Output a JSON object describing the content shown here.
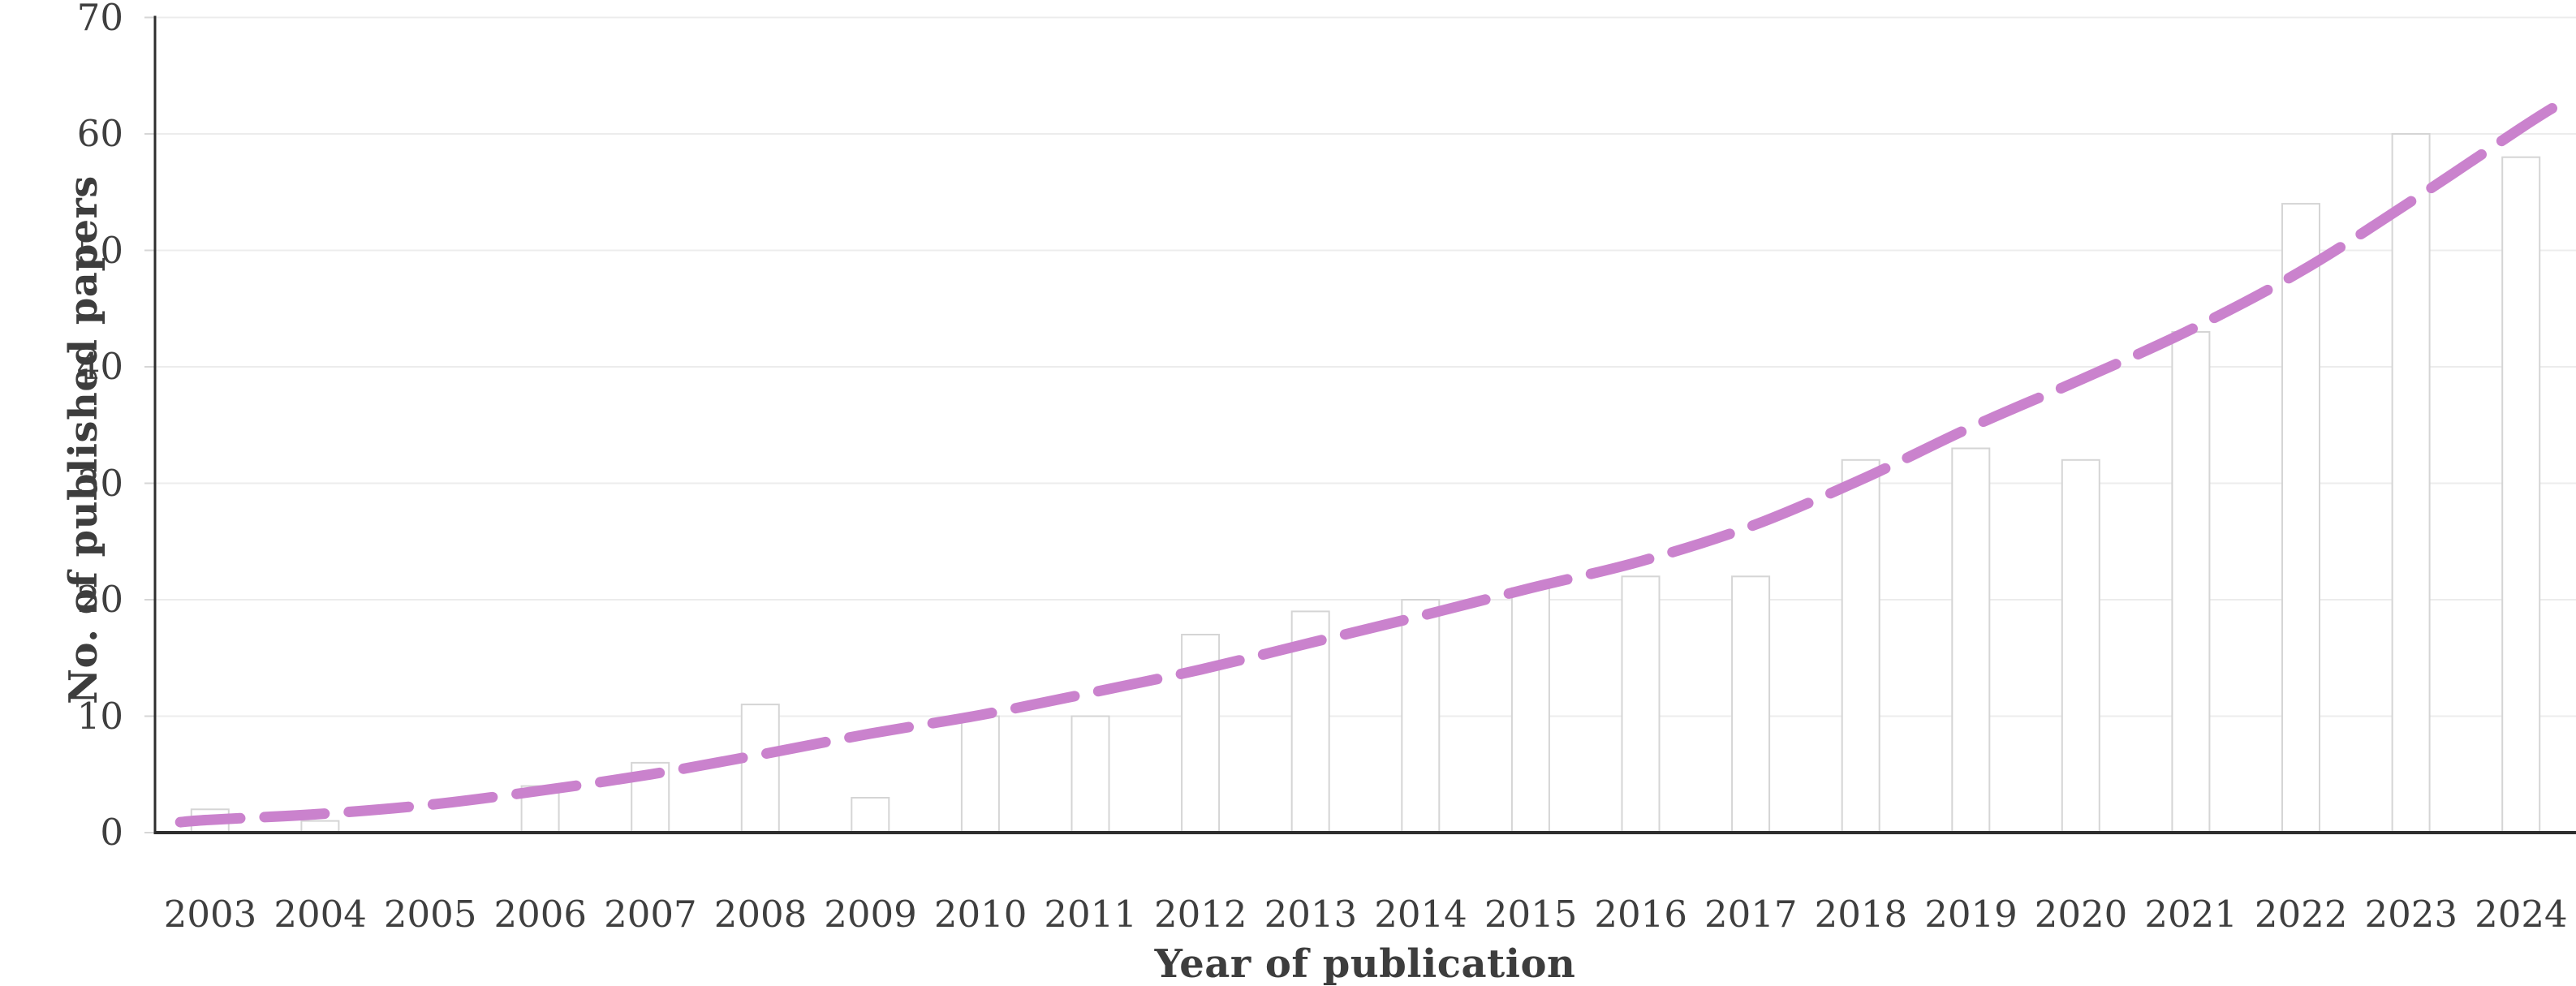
{
  "chart_data": {
    "type": "bar",
    "title": "",
    "xlabel": "Year of publication",
    "ylabel": "No. of published papers",
    "categories": [
      "2003",
      "2004",
      "2005",
      "2006",
      "2007",
      "2008",
      "2009",
      "2010",
      "2011",
      "2012",
      "2013",
      "2014",
      "2015",
      "2016",
      "2017",
      "2018",
      "2019",
      "2020",
      "2021",
      "2022",
      "2023",
      "2024"
    ],
    "values": [
      2,
      1,
      0,
      4,
      6,
      11,
      3,
      10,
      10,
      17,
      19,
      20,
      21,
      22,
      22,
      32,
      33,
      32,
      43,
      54,
      60,
      58
    ],
    "ylim": [
      0,
      70
    ],
    "yticks": [
      0,
      10,
      20,
      30,
      40,
      50,
      60,
      70
    ],
    "grid": "horizontal",
    "legend": "none",
    "trendline": {
      "style": "dashed",
      "color": "#ca82cd",
      "samples": [
        [
          -0.27,
          0.9
        ],
        [
          0,
          1.1
        ],
        [
          1,
          1.6
        ],
        [
          2,
          2.4
        ],
        [
          3,
          3.6
        ],
        [
          4,
          5.0
        ],
        [
          5,
          6.7
        ],
        [
          6,
          8.5
        ],
        [
          7,
          10.1
        ],
        [
          8,
          12.0
        ],
        [
          9,
          14.0
        ],
        [
          10,
          16.3
        ],
        [
          11,
          18.6
        ],
        [
          12,
          21.0
        ],
        [
          13,
          23.3
        ],
        [
          14,
          26.3
        ],
        [
          15,
          30.3
        ],
        [
          16,
          34.8
        ],
        [
          17,
          38.9
        ],
        [
          18,
          43.2
        ],
        [
          19,
          48.2
        ],
        [
          20,
          54.2
        ],
        [
          21,
          60.5
        ],
        [
          21.3,
          62.3
        ]
      ]
    },
    "colors": {
      "bar_fill": "#ffffff",
      "bar_border": "#d5d5d5",
      "grid": "#ececec",
      "tick": "#d6d6d6",
      "axis": "#2e2e2e",
      "text": "#3f3f3f"
    }
  }
}
